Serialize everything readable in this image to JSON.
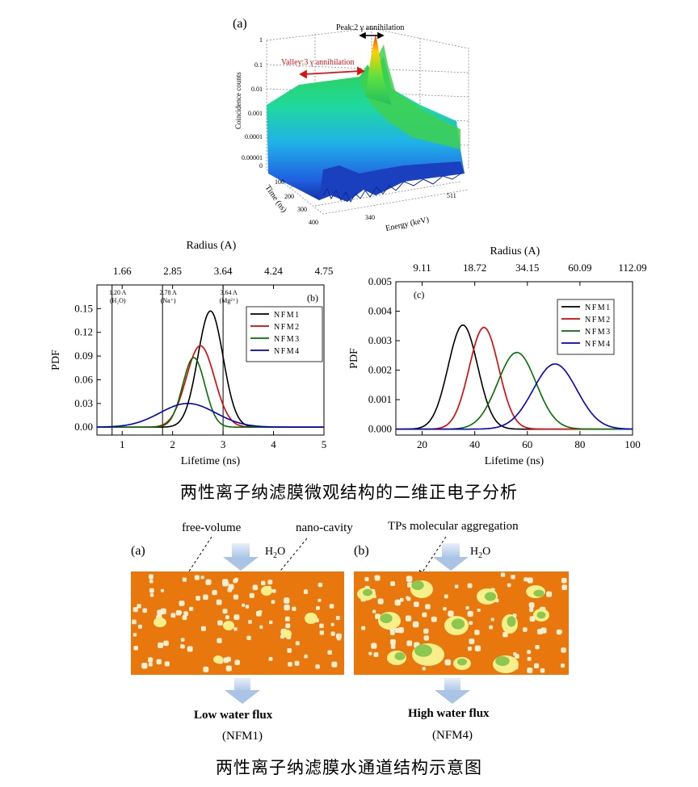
{
  "figure_a": {
    "panel": "(a)",
    "peak_label": "Peak:2 γ annihilation",
    "valley_label": "Valley:3 γ annihilation",
    "z_label": "Coincidence counts",
    "z_ticks": [
      "1",
      "0.1",
      "0.01",
      "0.001",
      "0.0001",
      "0.00001",
      "0"
    ],
    "time_label": "Time (ns)",
    "time_ticks": [
      "100",
      "200",
      "300",
      "400"
    ],
    "energy_label": "Energy (keV)",
    "energy_ticks": [
      "340",
      "511"
    ]
  },
  "chart_data": [
    {
      "type": "line",
      "panel": "(b)",
      "xlabel": "Lifetime (ns)",
      "ylabel": "PDF",
      "top_axis_label": "Radius (A)",
      "top_ticks": [
        {
          "x": 1.0,
          "label": "1.66"
        },
        {
          "x": 2.0,
          "label": "2.85"
        },
        {
          "x": 3.0,
          "label": "3.64"
        },
        {
          "x": 4.0,
          "label": "4.24"
        },
        {
          "x": 5.0,
          "label": "4.75"
        }
      ],
      "xlim": [
        0.5,
        5
      ],
      "ylim": [
        -0.01,
        0.18
      ],
      "xticks": [
        1,
        2,
        3,
        4,
        5
      ],
      "yticks": [
        0.0,
        0.03,
        0.06,
        0.09,
        0.12,
        0.15
      ],
      "ytick_labels": [
        "0.00",
        "0.03",
        "0.06",
        "0.09",
        "0.12",
        "0.15"
      ],
      "vlines": [
        {
          "x": 0.8,
          "label": "1.20 A",
          "sub": "(H₂O)"
        },
        {
          "x": 1.8,
          "label": "2.78 A",
          "sub": "(Na⁺)"
        },
        {
          "x": 3.0,
          "label": "3.64 A",
          "sub": "(Mg²⁺)"
        }
      ],
      "series": [
        {
          "name": "NFM1",
          "color": "#000000",
          "peak": 0.147,
          "center": 2.75,
          "sigma": 0.25
        },
        {
          "name": "NFM2",
          "color": "#e00000",
          "peak": 0.103,
          "center": 2.55,
          "sigma": 0.28
        },
        {
          "name": "NFM3",
          "color": "#007000",
          "peak": 0.088,
          "center": 2.42,
          "sigma": 0.22
        },
        {
          "name": "NFM4",
          "color": "#0000cc",
          "peak": 0.03,
          "center": 2.3,
          "sigma": 0.55
        }
      ]
    },
    {
      "type": "line",
      "panel": "(c)",
      "xlabel": "Lifetime (ns)",
      "ylabel": "PDF",
      "top_axis_label": "Radius (A)",
      "top_ticks": [
        {
          "x": 20,
          "label": "9.11"
        },
        {
          "x": 40,
          "label": "18.72"
        },
        {
          "x": 60,
          "label": "34.15"
        },
        {
          "x": 80,
          "label": "60.09"
        },
        {
          "x": 100,
          "label": "112.09"
        }
      ],
      "xlim": [
        10,
        100
      ],
      "ylim": [
        -0.0002,
        0.005
      ],
      "xticks": [
        20,
        40,
        60,
        80,
        100
      ],
      "yticks": [
        0,
        0.001,
        0.002,
        0.003,
        0.004,
        0.005
      ],
      "ytick_labels": [
        "0.000",
        "0.001",
        "0.002",
        "0.003",
        "0.004",
        "0.005"
      ],
      "series": [
        {
          "name": "NFM1",
          "color": "#000000",
          "peak": 0.00353,
          "center": 35.5,
          "sigma": 5.6
        },
        {
          "name": "NFM2",
          "color": "#e00000",
          "peak": 0.00345,
          "center": 43.5,
          "sigma": 5.6
        },
        {
          "name": "NFM3",
          "color": "#007000",
          "peak": 0.0026,
          "center": 56.0,
          "sigma": 7.3
        },
        {
          "name": "NFM4",
          "color": "#0000cc",
          "peak": 0.00221,
          "center": 70.5,
          "sigma": 8.3
        }
      ]
    }
  ],
  "caption_top": "两性离子纳滤膜微观结构的二维正电子分析",
  "schematic": {
    "free_volume": "free-volume",
    "nano_cavity": "nano-cavity",
    "tps": "TPs molecular aggregation",
    "panel_a": "(a)",
    "panel_b": "(b)",
    "h2o": "H",
    "h2o_sub": "2",
    "h2o_end": "O",
    "low_flux": "Low water flux",
    "nfm1": "(NFM1)",
    "high_flux": "High water flux",
    "nfm4": "(NFM4)",
    "orange": "#e8780e"
  },
  "caption_bottom": "两性离子纳滤膜水通道结构示意图"
}
